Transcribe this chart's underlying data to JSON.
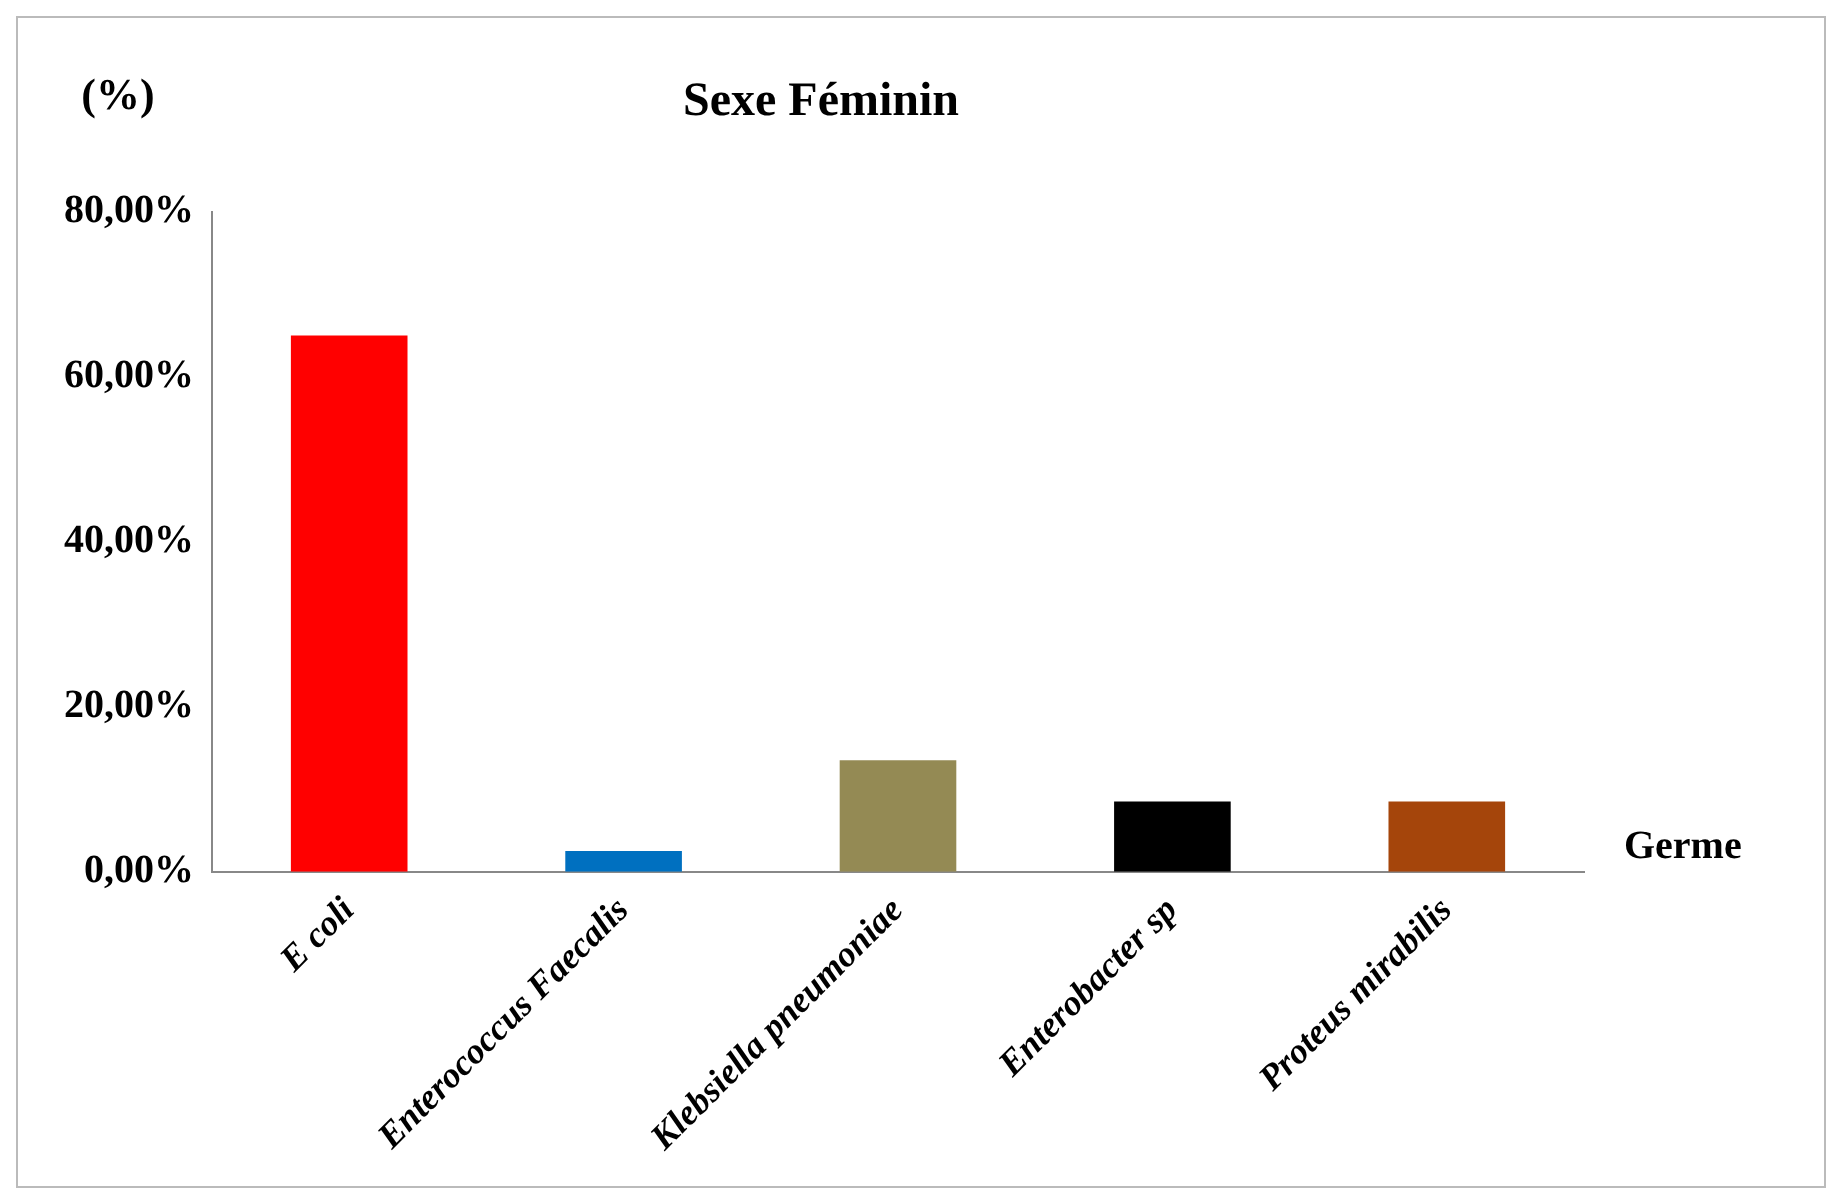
{
  "chart_data": {
    "type": "bar",
    "title": "Sexe Féminin",
    "ylabel": "(%)",
    "xlabel": "Germe",
    "categories": [
      "E coli",
      "Enterococcus Faecalis",
      "Klebsiella pneumoniae",
      "Enterobacter sp",
      "Proteus mirabilis"
    ],
    "values": [
      65,
      2.5,
      13.5,
      8.5,
      8.5
    ],
    "colors": [
      "#ff0000",
      "#0070c0",
      "#948a54",
      "#000000",
      "#a5450b"
    ],
    "ylim": [
      0,
      80
    ],
    "yticks": [
      {
        "value": 0,
        "label": "0,00%"
      },
      {
        "value": 20,
        "label": "20,00%"
      },
      {
        "value": 40,
        "label": "40,00%"
      },
      {
        "value": 60,
        "label": "60,00%"
      },
      {
        "value": 80,
        "label": "80,00%"
      }
    ],
    "grid": false,
    "legend": false
  }
}
